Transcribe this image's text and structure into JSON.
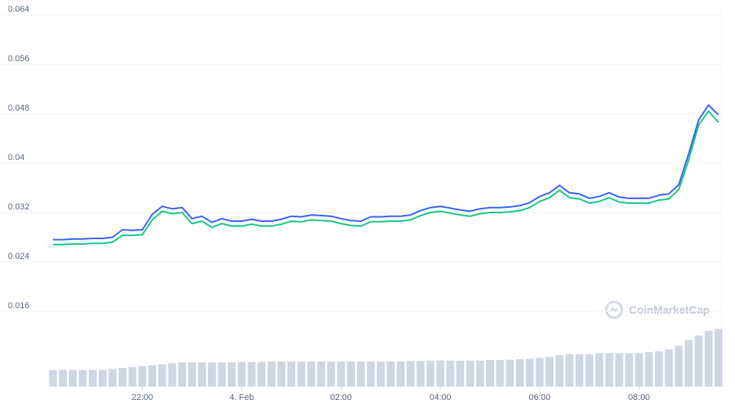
{
  "chart_data": {
    "type": "line",
    "watermark": "CoinMarketCap",
    "x": [
      -3.8,
      -3.6,
      -3.4,
      -3.2,
      -3.0,
      -2.8,
      -2.6,
      -2.4,
      -2.2,
      -2.0,
      -1.8,
      -1.6,
      -1.4,
      -1.2,
      -1.0,
      -0.8,
      -0.6,
      -0.4,
      -0.2,
      0.0,
      0.2,
      0.4,
      0.6,
      0.8,
      1.0,
      1.2,
      1.4,
      1.6,
      1.8,
      2.0,
      2.2,
      2.4,
      2.6,
      2.8,
      3.0,
      3.2,
      3.4,
      3.6,
      3.8,
      4.0,
      4.2,
      4.4,
      4.6,
      4.8,
      5.0,
      5.2,
      5.4,
      5.6,
      5.8,
      6.0,
      6.2,
      6.4,
      6.6,
      6.8,
      7.0,
      7.2,
      7.4,
      7.6,
      7.8,
      8.0,
      8.2,
      8.4,
      8.6,
      8.8,
      9.0,
      9.2,
      9.4,
      9.6
    ],
    "series": [
      {
        "color": "#3861fb",
        "values": [
          0.0276,
          0.0276,
          0.0277,
          0.0277,
          0.0278,
          0.0278,
          0.028,
          0.0292,
          0.0291,
          0.0292,
          0.0317,
          0.033,
          0.0326,
          0.0328,
          0.031,
          0.0314,
          0.0304,
          0.031,
          0.0306,
          0.0306,
          0.0309,
          0.0306,
          0.0306,
          0.0309,
          0.0314,
          0.0313,
          0.0316,
          0.0315,
          0.0314,
          0.031,
          0.0307,
          0.0306,
          0.0313,
          0.0313,
          0.0314,
          0.0314,
          0.0316,
          0.0323,
          0.0328,
          0.033,
          0.0327,
          0.0324,
          0.0322,
          0.0326,
          0.0328,
          0.0328,
          0.0329,
          0.0331,
          0.0336,
          0.0346,
          0.0352,
          0.0364,
          0.0352,
          0.035,
          0.0343,
          0.0346,
          0.0352,
          0.0345,
          0.0343,
          0.0343,
          0.0343,
          0.0348,
          0.035,
          0.0365,
          0.0415,
          0.047,
          0.0494,
          0.0478
        ]
      },
      {
        "color": "#16c784",
        "values": [
          0.0268,
          0.0268,
          0.0269,
          0.0269,
          0.027,
          0.027,
          0.0272,
          0.0283,
          0.0283,
          0.0284,
          0.0308,
          0.0322,
          0.0318,
          0.032,
          0.0302,
          0.0306,
          0.0296,
          0.0302,
          0.0298,
          0.0298,
          0.0301,
          0.0298,
          0.0298,
          0.0301,
          0.0306,
          0.0305,
          0.0308,
          0.0307,
          0.0306,
          0.0302,
          0.0299,
          0.0298,
          0.0305,
          0.0305,
          0.0306,
          0.0306,
          0.0308,
          0.0315,
          0.032,
          0.0322,
          0.0319,
          0.0316,
          0.0314,
          0.0318,
          0.032,
          0.032,
          0.0321,
          0.0323,
          0.0328,
          0.0338,
          0.0344,
          0.0356,
          0.0344,
          0.0342,
          0.0335,
          0.0338,
          0.0344,
          0.0337,
          0.0335,
          0.0335,
          0.0335,
          0.034,
          0.0342,
          0.0357,
          0.0405,
          0.0462,
          0.0484,
          0.0466
        ]
      },
      {
        "type": "bar",
        "axis": "y2",
        "color": "#cfd6e4",
        "values": [
          9,
          9,
          9,
          9,
          9,
          9,
          9.5,
          10,
          10.5,
          11,
          11.5,
          12,
          12.5,
          13,
          13,
          13,
          13,
          13,
          13,
          13.3,
          13.3,
          13.3,
          13.5,
          13.5,
          13.5,
          13.5,
          13.5,
          13.5,
          13.5,
          13.5,
          13.5,
          13.5,
          13.5,
          13.5,
          13.5,
          13.5,
          13.7,
          13.7,
          14,
          14,
          14,
          14,
          14,
          14,
          14.3,
          14.3,
          14.5,
          14.8,
          15,
          15.5,
          16,
          17,
          17.5,
          17.5,
          17.5,
          18,
          18,
          18,
          18,
          18,
          18.5,
          19,
          20,
          22,
          25,
          27.5,
          30,
          31
        ]
      }
    ],
    "xlim": [
      -3.87,
      9.6
    ],
    "xticks": [
      {
        "value": -2,
        "label": "22:00"
      },
      {
        "value": 0,
        "label": "4. Feb"
      },
      {
        "value": 2,
        "label": "02:00"
      },
      {
        "value": 4,
        "label": "04:00"
      },
      {
        "value": 6,
        "label": "06:00"
      },
      {
        "value": 8,
        "label": "08:00"
      }
    ],
    "ylim": [
      0.0038,
      0.064
    ],
    "yticks": [
      0.016,
      0.024,
      0.032,
      0.04,
      0.048,
      0.056,
      0.064
    ],
    "y2lim": [
      0,
      200
    ],
    "grid": true
  }
}
